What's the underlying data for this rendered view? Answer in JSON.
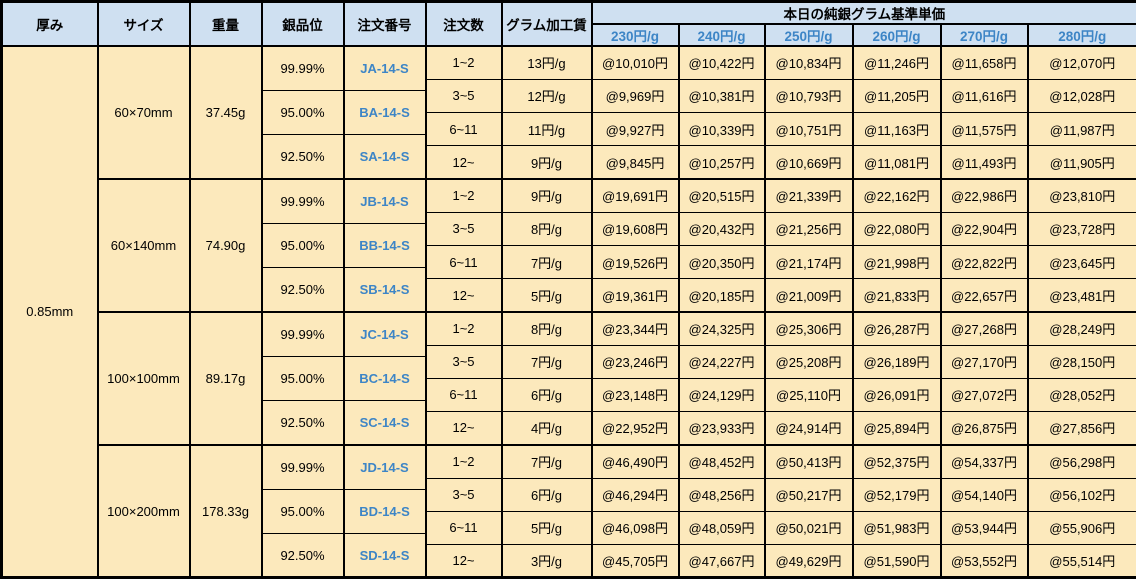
{
  "table": {
    "columns": {
      "thickness": "厚み",
      "size": "サイズ",
      "weight": "重量",
      "purity": "銀品位",
      "order_number": "注文番号",
      "order_quantity": "注文数",
      "processing_fee": "グラム加工賃",
      "price_group": "本日の純銀グラム基準単価",
      "price_tiers": [
        "230円/g",
        "240円/g",
        "250円/g",
        "260円/g",
        "270円/g",
        "280円/g"
      ]
    },
    "thickness": "0.85mm",
    "blocks": [
      {
        "size": "60×70mm",
        "weight": "37.45g",
        "purities": [
          {
            "purity": "99.99%",
            "order_number": "JA-14-S"
          },
          {
            "purity": "95.00%",
            "order_number": "BA-14-S"
          },
          {
            "purity": "92.50%",
            "order_number": "SA-14-S"
          }
        ],
        "rows": [
          {
            "quantity": "1~2",
            "fee": "13円/g",
            "prices": [
              "@10,010円",
              "@10,422円",
              "@10,834円",
              "@11,246円",
              "@11,658円",
              "@12,070円"
            ]
          },
          {
            "quantity": "3~5",
            "fee": "12円/g",
            "prices": [
              "@9,969円",
              "@10,381円",
              "@10,793円",
              "@11,205円",
              "@11,616円",
              "@12,028円"
            ]
          },
          {
            "quantity": "6~11",
            "fee": "11円/g",
            "prices": [
              "@9,927円",
              "@10,339円",
              "@10,751円",
              "@11,163円",
              "@11,575円",
              "@11,987円"
            ]
          },
          {
            "quantity": "12~",
            "fee": "9円/g",
            "prices": [
              "@9,845円",
              "@10,257円",
              "@10,669円",
              "@11,081円",
              "@11,493円",
              "@11,905円"
            ]
          }
        ]
      },
      {
        "size": "60×140mm",
        "weight": "74.90g",
        "purities": [
          {
            "purity": "99.99%",
            "order_number": "JB-14-S"
          },
          {
            "purity": "95.00%",
            "order_number": "BB-14-S"
          },
          {
            "purity": "92.50%",
            "order_number": "SB-14-S"
          }
        ],
        "rows": [
          {
            "quantity": "1~2",
            "fee": "9円/g",
            "prices": [
              "@19,691円",
              "@20,515円",
              "@21,339円",
              "@22,162円",
              "@22,986円",
              "@23,810円"
            ]
          },
          {
            "quantity": "3~5",
            "fee": "8円/g",
            "prices": [
              "@19,608円",
              "@20,432円",
              "@21,256円",
              "@22,080円",
              "@22,904円",
              "@23,728円"
            ]
          },
          {
            "quantity": "6~11",
            "fee": "7円/g",
            "prices": [
              "@19,526円",
              "@20,350円",
              "@21,174円",
              "@21,998円",
              "@22,822円",
              "@23,645円"
            ]
          },
          {
            "quantity": "12~",
            "fee": "5円/g",
            "prices": [
              "@19,361円",
              "@20,185円",
              "@21,009円",
              "@21,833円",
              "@22,657円",
              "@23,481円"
            ]
          }
        ]
      },
      {
        "size": "100×100mm",
        "weight": "89.17g",
        "purities": [
          {
            "purity": "99.99%",
            "order_number": "JC-14-S"
          },
          {
            "purity": "95.00%",
            "order_number": "BC-14-S"
          },
          {
            "purity": "92.50%",
            "order_number": "SC-14-S"
          }
        ],
        "rows": [
          {
            "quantity": "1~2",
            "fee": "8円/g",
            "prices": [
              "@23,344円",
              "@24,325円",
              "@25,306円",
              "@26,287円",
              "@27,268円",
              "@28,249円"
            ]
          },
          {
            "quantity": "3~5",
            "fee": "7円/g",
            "prices": [
              "@23,246円",
              "@24,227円",
              "@25,208円",
              "@26,189円",
              "@27,170円",
              "@28,150円"
            ]
          },
          {
            "quantity": "6~11",
            "fee": "6円/g",
            "prices": [
              "@23,148円",
              "@24,129円",
              "@25,110円",
              "@26,091円",
              "@27,072円",
              "@28,052円"
            ]
          },
          {
            "quantity": "12~",
            "fee": "4円/g",
            "prices": [
              "@22,952円",
              "@23,933円",
              "@24,914円",
              "@25,894円",
              "@26,875円",
              "@27,856円"
            ]
          }
        ]
      },
      {
        "size": "100×200mm",
        "weight": "178.33g",
        "purities": [
          {
            "purity": "99.99%",
            "order_number": "JD-14-S"
          },
          {
            "purity": "95.00%",
            "order_number": "BD-14-S"
          },
          {
            "purity": "92.50%",
            "order_number": "SD-14-S"
          }
        ],
        "rows": [
          {
            "quantity": "1~2",
            "fee": "7円/g",
            "prices": [
              "@46,490円",
              "@48,452円",
              "@50,413円",
              "@52,375円",
              "@54,337円",
              "@56,298円"
            ]
          },
          {
            "quantity": "3~5",
            "fee": "6円/g",
            "prices": [
              "@46,294円",
              "@48,256円",
              "@50,217円",
              "@52,179円",
              "@54,140円",
              "@56,102円"
            ]
          },
          {
            "quantity": "6~11",
            "fee": "5円/g",
            "prices": [
              "@46,098円",
              "@48,059円",
              "@50,021円",
              "@51,983円",
              "@53,944円",
              "@55,906円"
            ]
          },
          {
            "quantity": "12~",
            "fee": "3円/g",
            "prices": [
              "@45,705円",
              "@47,667円",
              "@49,629円",
              "@51,590円",
              "@53,552円",
              "@55,514円"
            ]
          }
        ]
      }
    ],
    "colors": {
      "header_bg": "#cfe0f1",
      "body_bg": "#fce9bc",
      "accent_blue": "#3d85c6",
      "border": "#000000"
    }
  }
}
